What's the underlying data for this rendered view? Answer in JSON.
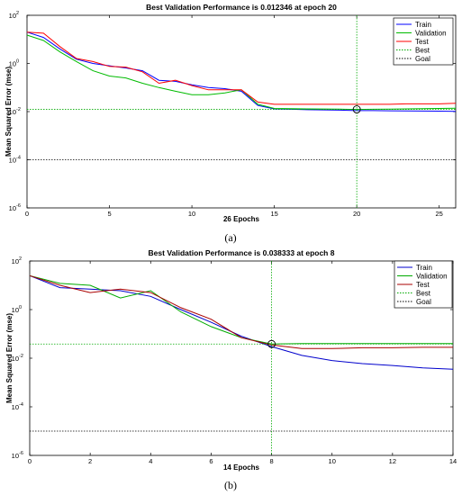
{
  "chart_data": [
    {
      "type": "line",
      "title": "Best Validation Performance is 0.012346 at epoch 20",
      "xlabel": "26 Epochs",
      "ylabel": "Mean Squared Error  (mse)",
      "xlim": [
        0,
        26
      ],
      "ylim_log10": [
        -6,
        2
      ],
      "yscale": "log",
      "xticks": [
        0,
        5,
        10,
        15,
        20,
        25
      ],
      "yticks": [
        {
          "base": "10",
          "exp": "2"
        },
        {
          "base": "10",
          "exp": "0"
        },
        {
          "base": "10",
          "exp": "-2"
        },
        {
          "base": "10",
          "exp": "-4"
        },
        {
          "base": "10",
          "exp": "-6"
        }
      ],
      "legend_position": "top-right",
      "caption": "(a)",
      "best_epoch": 20,
      "best_value": 0.012346,
      "goal": 0.0001,
      "series": [
        {
          "name": "Train",
          "color": "#0000ff",
          "x": [
            0,
            1,
            2,
            3,
            4,
            5,
            6,
            7,
            8,
            9,
            10,
            11,
            12,
            13,
            14,
            15,
            16,
            17,
            18,
            19,
            20,
            21,
            22,
            23,
            24,
            25,
            26
          ],
          "y": [
            20,
            12,
            4,
            1.5,
            1,
            0.8,
            0.65,
            0.5,
            0.2,
            0.18,
            0.13,
            0.1,
            0.09,
            0.07,
            0.018,
            0.013,
            0.0125,
            0.012,
            0.0118,
            0.0115,
            0.011,
            0.011,
            0.0108,
            0.0106,
            0.0105,
            0.0104,
            0.0103
          ]
        },
        {
          "name": "Validation",
          "color": "#00bb00",
          "x": [
            0,
            1,
            2,
            3,
            4,
            5,
            6,
            7,
            8,
            9,
            10,
            11,
            12,
            13,
            14,
            15,
            16,
            17,
            18,
            19,
            20,
            21,
            22,
            23,
            24,
            25,
            26
          ],
          "y": [
            15,
            9,
            3,
            1.2,
            0.5,
            0.3,
            0.25,
            0.15,
            0.1,
            0.07,
            0.05,
            0.05,
            0.06,
            0.08,
            0.02,
            0.0135,
            0.0132,
            0.013,
            0.0128,
            0.0126,
            0.012346,
            0.0125,
            0.0127,
            0.013,
            0.0132,
            0.0135,
            0.0137
          ]
        },
        {
          "name": "Test",
          "color": "#ff0000",
          "x": [
            0,
            1,
            2,
            3,
            4,
            5,
            6,
            7,
            8,
            9,
            10,
            11,
            12,
            13,
            14,
            15,
            16,
            17,
            18,
            19,
            20,
            21,
            22,
            23,
            24,
            25,
            26
          ],
          "y": [
            20,
            18,
            5,
            1.6,
            1.2,
            0.75,
            0.7,
            0.45,
            0.15,
            0.2,
            0.12,
            0.08,
            0.08,
            0.08,
            0.025,
            0.02,
            0.02,
            0.02,
            0.02,
            0.02,
            0.02,
            0.02,
            0.02,
            0.021,
            0.021,
            0.021,
            0.022
          ]
        }
      ]
    },
    {
      "type": "line",
      "title": "Best Validation Performance is 0.038333 at epoch 8",
      "xlabel": "14 Epochs",
      "ylabel": "Mean Squared Error  (mse)",
      "xlim": [
        0,
        14
      ],
      "ylim_log10": [
        -6,
        2
      ],
      "yscale": "log",
      "xticks": [
        0,
        2,
        4,
        6,
        8,
        10,
        12,
        14
      ],
      "yticks": [
        {
          "base": "10",
          "exp": "2"
        },
        {
          "base": "10",
          "exp": "0"
        },
        {
          "base": "10",
          "exp": "-2"
        },
        {
          "base": "10",
          "exp": "-4"
        },
        {
          "base": "10",
          "exp": "-6"
        }
      ],
      "legend_position": "top-right",
      "caption": "(b)",
      "best_epoch": 8,
      "best_value": 0.038333,
      "goal": 1e-05,
      "series": [
        {
          "name": "Train",
          "color": "#0000cc",
          "x": [
            0,
            1,
            2,
            3,
            4,
            5,
            6,
            7,
            8,
            9,
            10,
            11,
            12,
            13,
            14
          ],
          "y": [
            25,
            8,
            7,
            6,
            3.5,
            1,
            0.3,
            0.08,
            0.03,
            0.013,
            0.008,
            0.006,
            0.005,
            0.004,
            0.0035
          ]
        },
        {
          "name": "Validation",
          "color": "#00aa00",
          "x": [
            0,
            1,
            2,
            3,
            4,
            5,
            6,
            7,
            8,
            9,
            10,
            11,
            12,
            13,
            14
          ],
          "y": [
            25,
            12,
            10,
            3,
            6,
            0.8,
            0.2,
            0.07,
            0.038333,
            0.04,
            0.04,
            0.04,
            0.04,
            0.04,
            0.04
          ]
        },
        {
          "name": "Test",
          "color": "#aa0000",
          "x": [
            0,
            1,
            2,
            3,
            4,
            5,
            6,
            7,
            8,
            9,
            10,
            11,
            12,
            13,
            14
          ],
          "y": [
            25,
            10,
            5,
            7,
            5,
            1.2,
            0.4,
            0.07,
            0.035,
            0.025,
            0.025,
            0.027,
            0.027,
            0.028,
            0.028
          ]
        }
      ],
      "legend_extra": [
        {
          "name": "Best",
          "color": "#00aa00"
        },
        {
          "name": "Goal",
          "color": "#000000"
        }
      ]
    }
  ],
  "legend_extra_a": [
    {
      "name": "Best",
      "color": "#00aa00"
    },
    {
      "name": "Goal",
      "color": "#000000"
    }
  ]
}
